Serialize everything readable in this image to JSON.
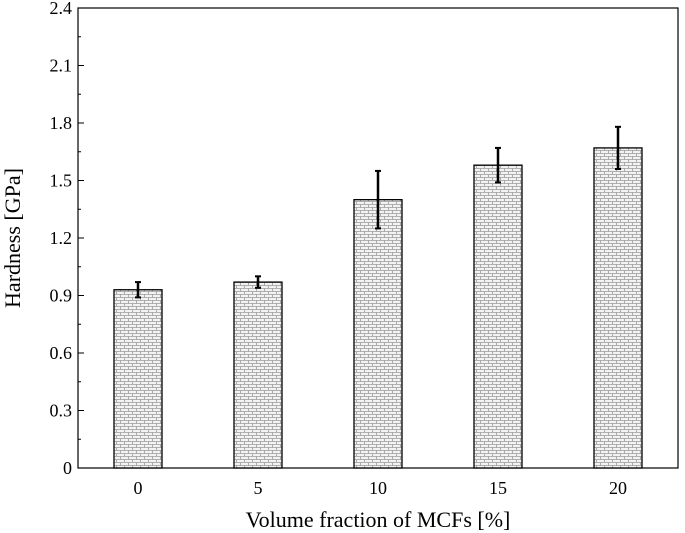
{
  "chart_data": {
    "type": "bar",
    "title": "",
    "xlabel": "Volume fraction of MCFs [%]",
    "ylabel": "Hardness [GPa]",
    "categories": [
      "0",
      "5",
      "10",
      "15",
      "20"
    ],
    "values": [
      0.93,
      0.97,
      1.4,
      1.58,
      1.67
    ],
    "errors": [
      0.04,
      0.03,
      0.15,
      0.09,
      0.11
    ],
    "ylim": [
      0,
      2.4
    ],
    "yticks": [
      "0",
      "0.3",
      "0.6",
      "0.9",
      "1.2",
      "1.5",
      "1.8",
      "2.1",
      "2.4"
    ],
    "grid": false,
    "legend": "none",
    "bar_fill_pattern": "brick",
    "colors": {
      "bar_fill": "#f2f2f2",
      "bar_pattern": "#9a9a9a",
      "bar_edge": "#000000",
      "error_bar": "#000000",
      "axis": "#000000"
    }
  }
}
